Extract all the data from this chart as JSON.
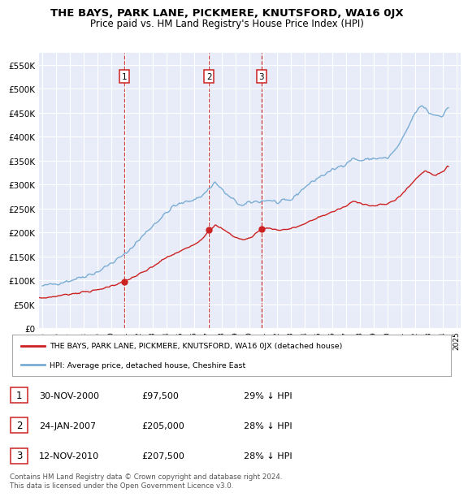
{
  "title": "THE BAYS, PARK LANE, PICKMERE, KNUTSFORD, WA16 0JX",
  "subtitle": "Price paid vs. HM Land Registry's House Price Index (HPI)",
  "ylim": [
    0,
    575000
  ],
  "yticks": [
    0,
    50000,
    100000,
    150000,
    200000,
    250000,
    300000,
    350000,
    400000,
    450000,
    500000,
    550000
  ],
  "ytick_labels": [
    "£0",
    "£50K",
    "£100K",
    "£150K",
    "£200K",
    "£250K",
    "£300K",
    "£350K",
    "£400K",
    "£450K",
    "£500K",
    "£550K"
  ],
  "xlim_start": 1994.75,
  "xlim_end": 2025.3,
  "background_color": "#e8ecf8",
  "grid_color": "#ffffff",
  "hpi_color": "#7aadd4",
  "price_color": "#cc2222",
  "sale_dates_decimal": [
    2000.915,
    2007.065,
    2010.87
  ],
  "sale_prices": [
    97500,
    205000,
    207500
  ],
  "sale_labels": [
    "1",
    "2",
    "3"
  ],
  "legend_line1": "THE BAYS, PARK LANE, PICKMERE, KNUTSFORD, WA16 0JX (detached house)",
  "legend_line2": "HPI: Average price, detached house, Cheshire East",
  "table_entries": [
    {
      "num": "1",
      "date": "30-NOV-2000",
      "price": "£97,500",
      "pct": "29% ↓ HPI"
    },
    {
      "num": "2",
      "date": "24-JAN-2007",
      "price": "£205,000",
      "pct": "28% ↓ HPI"
    },
    {
      "num": "3",
      "date": "12-NOV-2010",
      "price": "£207,500",
      "pct": "28% ↓ HPI"
    }
  ],
  "footnote": "Contains HM Land Registry data © Crown copyright and database right 2024.\nThis data is licensed under the Open Government Licence v3.0."
}
